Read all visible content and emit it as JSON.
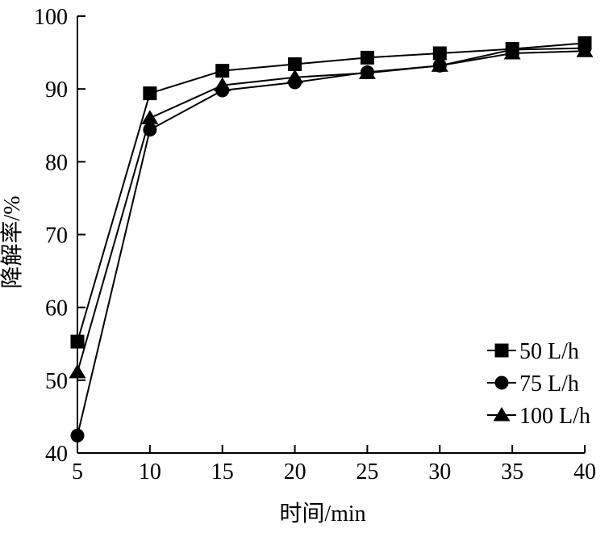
{
  "chart_data": {
    "type": "line",
    "title": "",
    "xlabel": "时间/min",
    "ylabel": "降解率/%",
    "xlim": [
      5,
      40
    ],
    "ylim": [
      40,
      100
    ],
    "x_ticks": [
      5,
      10,
      15,
      20,
      25,
      30,
      35,
      40
    ],
    "y_ticks": [
      40,
      50,
      60,
      70,
      80,
      90,
      100
    ],
    "grid": false,
    "legend_position": "bottom-right",
    "x": [
      5,
      10,
      15,
      20,
      25,
      30,
      35,
      40
    ],
    "series": [
      {
        "name": "50 L/h",
        "marker": "square",
        "values": [
          55.3,
          89.4,
          92.5,
          93.4,
          94.3,
          94.9,
          95.5,
          96.3
        ]
      },
      {
        "name": "75 L/h",
        "marker": "circle",
        "values": [
          42.4,
          84.4,
          89.8,
          90.9,
          92.3,
          93.2,
          95.4,
          95.6
        ]
      },
      {
        "name": "100 L/h",
        "marker": "triangle",
        "values": [
          51.1,
          86.0,
          90.5,
          91.6,
          92.2,
          93.2,
          94.9,
          95.2
        ]
      }
    ],
    "colors": {
      "line": "#000000",
      "marker": "#000000",
      "background": "#ffffff"
    }
  }
}
